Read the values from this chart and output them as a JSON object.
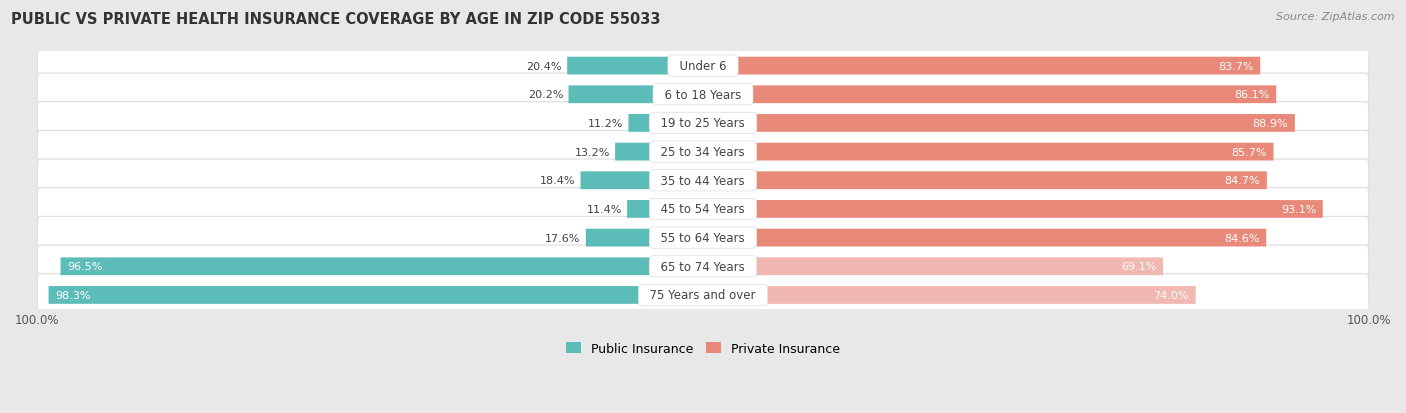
{
  "title": "PUBLIC VS PRIVATE HEALTH INSURANCE COVERAGE BY AGE IN ZIP CODE 55033",
  "source": "Source: ZipAtlas.com",
  "categories": [
    "Under 6",
    "6 to 18 Years",
    "19 to 25 Years",
    "25 to 34 Years",
    "35 to 44 Years",
    "45 to 54 Years",
    "55 to 64 Years",
    "65 to 74 Years",
    "75 Years and over"
  ],
  "public_values": [
    20.4,
    20.2,
    11.2,
    13.2,
    18.4,
    11.4,
    17.6,
    96.5,
    98.3
  ],
  "private_values": [
    83.7,
    86.1,
    88.9,
    85.7,
    84.7,
    93.1,
    84.6,
    69.1,
    74.0
  ],
  "public_color": "#5bbcb8",
  "private_color_strong": "#e8897a",
  "private_color_light": "#f0b8b0",
  "bg_color": "#e8e8e8",
  "row_bg_color": "#f5f5f5",
  "row_edge_color": "#dddddd",
  "title_color": "#333333",
  "source_color": "#888888",
  "label_dark": "#444444",
  "label_white": "#ffffff",
  "max_value": 100.0,
  "bar_height": 0.62,
  "figsize": [
    14.06,
    4.14
  ],
  "dpi": 100,
  "private_light_threshold": 80,
  "pub_inside_threshold": 25
}
